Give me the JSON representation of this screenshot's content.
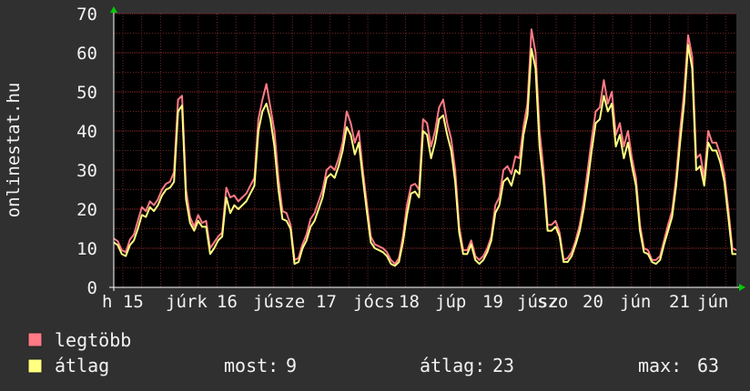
{
  "colors": {
    "background": "#303030",
    "plot_background": "#000000",
    "grid": "#8a2a2a",
    "axis": "#ffffff",
    "arrow": "#00cc00",
    "max_series": "#ff7a85",
    "avg_series": "#ffff80",
    "text": "#f2f2f2"
  },
  "chart_data": {
    "type": "line",
    "ylabel": "onlinestat.hu",
    "ylim": [
      0,
      70
    ],
    "yticks": [
      0,
      10,
      20,
      30,
      40,
      50,
      60,
      70
    ],
    "grid": true,
    "x_labels": [
      "h 15",
      "júrk",
      "16",
      "júsze",
      "17",
      "jócs",
      "18",
      "júp",
      "19",
      "júsz",
      "szo",
      "20",
      "jún",
      "21",
      "jún"
    ],
    "series": [
      {
        "name": "legtöbb",
        "color": "#ff7a85",
        "values": [
          12.5,
          11.8,
          9.5,
          9,
          12.2,
          13.5,
          17,
          20.5,
          19.5,
          22,
          21,
          22.5,
          25,
          26.5,
          27,
          29.5,
          48,
          49,
          25,
          18,
          15.5,
          18.5,
          16.5,
          17,
          10,
          11.5,
          13,
          14,
          25.5,
          23,
          23.5,
          22,
          23,
          24,
          26,
          28,
          43,
          48,
          52,
          46,
          40,
          28,
          19.5,
          19,
          16,
          7,
          7.5,
          11,
          13.5,
          17.5,
          19,
          22,
          25,
          30,
          31,
          30,
          33,
          37,
          45,
          42,
          37,
          40,
          30,
          21.5,
          13,
          11,
          10.5,
          10,
          9,
          7,
          6,
          7.5,
          13,
          21,
          26,
          26.5,
          25,
          43,
          42,
          36,
          40,
          46,
          48,
          42,
          38,
          30,
          15.5,
          9.5,
          9.5,
          12,
          8,
          7,
          8,
          10,
          13,
          21,
          23,
          30,
          31,
          29,
          33.5,
          33,
          41,
          47,
          66,
          60,
          40,
          30,
          16,
          16,
          17,
          14,
          7,
          7.5,
          9,
          12,
          16,
          22,
          30,
          38,
          45,
          46,
          53,
          47,
          50,
          39,
          42,
          36,
          40,
          33,
          28,
          16,
          10,
          9.5,
          7,
          7,
          8,
          12,
          16,
          19.5,
          28,
          40,
          50,
          64.5,
          59,
          33,
          34,
          28,
          40,
          37,
          37,
          34,
          29,
          20,
          10,
          9.5
        ]
      },
      {
        "name": "átlag",
        "color": "#ffff80",
        "values": [
          11.5,
          10.8,
          8.5,
          8,
          10.8,
          12,
          15,
          18.5,
          18,
          20.5,
          19.5,
          21,
          23.5,
          25,
          25.5,
          27,
          45,
          46.5,
          22.5,
          16.5,
          14.5,
          17,
          15.5,
          15.5,
          8.5,
          10,
          12,
          13,
          23,
          19,
          21,
          20,
          21,
          22,
          24,
          26,
          40,
          45,
          47,
          43,
          36,
          25,
          17.5,
          17,
          15,
          6,
          6.5,
          10,
          12,
          15.5,
          17,
          20,
          23,
          28,
          29,
          28,
          31,
          35,
          41,
          39,
          34,
          37,
          28,
          19.5,
          11.5,
          10,
          9.5,
          9,
          8,
          6,
          5.5,
          6.5,
          11.5,
          18.5,
          24,
          24.5,
          23,
          40,
          39,
          33,
          37,
          43,
          44,
          39,
          35,
          27,
          14,
          8.5,
          8.5,
          11,
          7,
          6,
          7,
          9,
          12,
          19,
          21,
          27,
          28,
          26,
          30,
          29,
          39,
          44,
          61,
          56,
          36,
          27,
          14.5,
          14.5,
          15.5,
          13,
          6.5,
          6.5,
          8,
          11,
          14.5,
          20,
          27,
          35,
          42,
          43,
          49,
          45,
          47,
          36,
          39,
          33,
          37,
          31,
          26,
          14.5,
          9,
          8.5,
          6.5,
          6,
          7,
          11,
          14.5,
          18,
          26,
          37,
          47,
          62,
          56,
          30,
          31,
          26,
          37,
          35,
          35,
          32,
          27,
          18,
          8.5,
          8.5
        ]
      }
    ],
    "legend": [
      {
        "label": "legtöbb",
        "color": "#ff7a85"
      },
      {
        "label": "átlag",
        "color": "#ffff80"
      }
    ],
    "stats": [
      {
        "label": "most:",
        "value": "9"
      },
      {
        "label": "átlag:",
        "value": "23"
      },
      {
        "label": "max:",
        "value": "63"
      }
    ]
  }
}
